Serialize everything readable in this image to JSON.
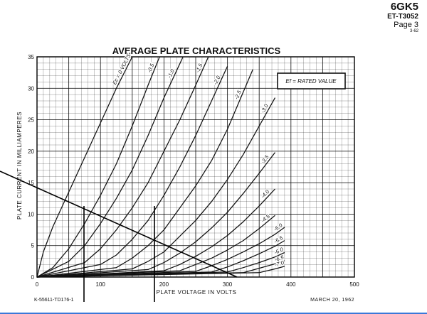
{
  "header": {
    "tube_type": "6GK5",
    "doc_code": "ET-T3052",
    "page": "Page 3",
    "issue_date": "3-62"
  },
  "chart_data": {
    "type": "line",
    "title": "AVERAGE PLATE CHARACTERISTICS",
    "xlabel": "PLATE VOLTAGE IN VOLTS",
    "ylabel": "PLATE CURRENT IN MILLIAMPERES",
    "xlim": [
      0,
      500
    ],
    "ylim": [
      0,
      35
    ],
    "xticks": [
      0,
      100,
      200,
      300,
      400,
      500
    ],
    "yticks": [
      0,
      5,
      10,
      15,
      20,
      25,
      30,
      35
    ],
    "grid": true,
    "legend_box": "Ef = RATED VALUE",
    "series": [
      {
        "name": "Ec = 0 VOLTS",
        "x": [
          0,
          10,
          25,
          50,
          75,
          100,
          125,
          150
        ],
        "y": [
          0,
          4,
          8,
          13.5,
          19,
          24.5,
          30,
          35
        ]
      },
      {
        "name": "-0.5",
        "x": [
          0,
          25,
          50,
          75,
          100,
          125,
          150,
          175,
          193
        ],
        "y": [
          0,
          1.5,
          4.5,
          8.5,
          13,
          18,
          24,
          30.5,
          35
        ]
      },
      {
        "name": "-1.0",
        "x": [
          0,
          50,
          75,
          100,
          125,
          150,
          175,
          200,
          230
        ],
        "y": [
          0,
          2.5,
          5,
          8.5,
          12.5,
          17,
          22.5,
          28.5,
          35
        ]
      },
      {
        "name": "-1.5",
        "x": [
          0,
          75,
          100,
          125,
          150,
          175,
          200,
          225,
          250,
          270
        ],
        "y": [
          0,
          2.3,
          4.5,
          7.5,
          11,
          15,
          20,
          25,
          30.5,
          35
        ]
      },
      {
        "name": "-2.0",
        "x": [
          0,
          100,
          125,
          150,
          175,
          200,
          225,
          250,
          275,
          300
        ],
        "y": [
          0,
          2,
          3.5,
          6,
          9,
          13,
          17.5,
          22.5,
          28,
          33.5
        ]
      },
      {
        "name": "-2.5",
        "x": [
          0,
          125,
          150,
          175,
          200,
          225,
          250,
          275,
          300,
          340
        ],
        "y": [
          0,
          1.5,
          3,
          5,
          7.5,
          11,
          14.5,
          18.5,
          23.5,
          33
        ]
      },
      {
        "name": "-3.0",
        "x": [
          0,
          150,
          175,
          200,
          225,
          250,
          275,
          300,
          325,
          350,
          375
        ],
        "y": [
          0,
          1.3,
          2.5,
          4,
          6.5,
          9,
          12,
          15.5,
          19.5,
          24,
          28.5
        ]
      },
      {
        "name": "-3.5",
        "x": [
          0,
          175,
          200,
          225,
          250,
          275,
          300,
          325,
          350,
          375
        ],
        "y": [
          0,
          1.2,
          2.3,
          3.8,
          5.6,
          7.8,
          10.3,
          13.3,
          16.5,
          19.8
        ]
      },
      {
        "name": "-4.0",
        "x": [
          0,
          200,
          225,
          250,
          275,
          300,
          325,
          350,
          375
        ],
        "y": [
          0,
          1,
          2,
          3.3,
          4.8,
          6.6,
          8.8,
          11.3,
          14
        ]
      },
      {
        "name": "-4.5",
        "x": [
          0,
          225,
          250,
          275,
          300,
          325,
          350,
          375
        ],
        "y": [
          0,
          1,
          2,
          3,
          4.3,
          5.8,
          7.7,
          9.8
        ]
      },
      {
        "name": "-5.0",
        "x": [
          0,
          250,
          275,
          300,
          325,
          350,
          375,
          390
        ],
        "y": [
          0,
          0.9,
          1.8,
          2.8,
          4,
          5.3,
          6.8,
          7.9
        ]
      },
      {
        "name": "-5.5",
        "x": [
          0,
          275,
          300,
          325,
          350,
          375,
          390
        ],
        "y": [
          0,
          0.8,
          1.6,
          2.6,
          3.7,
          4.9,
          5.8
        ]
      },
      {
        "name": "-6.0",
        "x": [
          0,
          300,
          325,
          350,
          375,
          390
        ],
        "y": [
          0,
          0.8,
          1.5,
          2.3,
          3.2,
          3.9
        ]
      },
      {
        "name": "-6.5",
        "x": [
          0,
          325,
          350,
          375,
          390
        ],
        "y": [
          0,
          0.7,
          1.4,
          2.1,
          2.6
        ]
      },
      {
        "name": "-7.0",
        "x": [
          0,
          350,
          375,
          390
        ],
        "y": [
          0,
          0.7,
          1.3,
          1.7
        ]
      }
    ],
    "curve_labels": [
      "Ec = 0 VOLTS",
      "-0.5",
      "-1.0",
      "-1.5",
      "-2.0",
      "-2.5",
      "-3.0",
      "-3.5",
      "-4.0",
      "-4.5",
      "-5.0",
      "-5.5",
      "-6.0",
      "-6.5",
      "-7.0"
    ],
    "annotations": {
      "load_line": {
        "x": [
          0,
          315
        ],
        "y": [
          14.2,
          0
        ]
      },
      "vertical_marks": [
        {
          "x": 74
        },
        {
          "x": 185
        }
      ]
    },
    "footer": {
      "drawing_number": "K-55611-TD176-1",
      "date": "MARCH 20, 1962"
    }
  }
}
